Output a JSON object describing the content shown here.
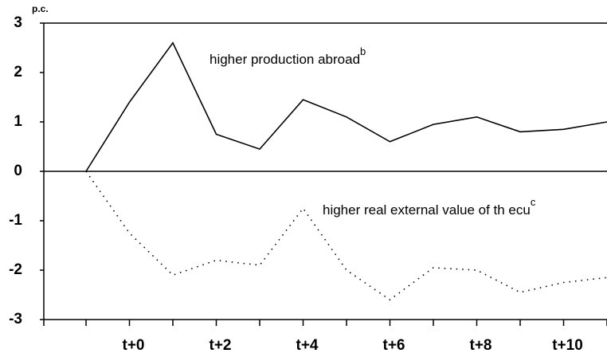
{
  "chart_data": {
    "type": "line",
    "y_label": "p.c.",
    "categories": [
      null,
      "t+0",
      null,
      "t+2",
      null,
      "t+4",
      null,
      "t+6",
      null,
      "t+8",
      null,
      "t+10",
      null
    ],
    "series": [
      {
        "name": "higher production abroad",
        "note": "b",
        "color": "#000000",
        "dash": "solid",
        "values": [
          0,
          1.4,
          2.6,
          0.75,
          0.45,
          1.45,
          1.1,
          0.6,
          0.95,
          1.1,
          0.8,
          0.85,
          1.0
        ]
      },
      {
        "name": "higher real external value of th ecu",
        "note": "c",
        "color": "#000000",
        "dash": "dotted",
        "values": [
          0,
          -1.25,
          -2.1,
          -1.8,
          -1.9,
          -0.75,
          -2.0,
          -2.6,
          -1.95,
          -2.0,
          -2.45,
          -2.25,
          -2.15
        ]
      }
    ],
    "ylim": [
      -3,
      3
    ],
    "yticks": [
      3,
      2,
      1,
      0,
      -1,
      -2,
      -3
    ]
  }
}
